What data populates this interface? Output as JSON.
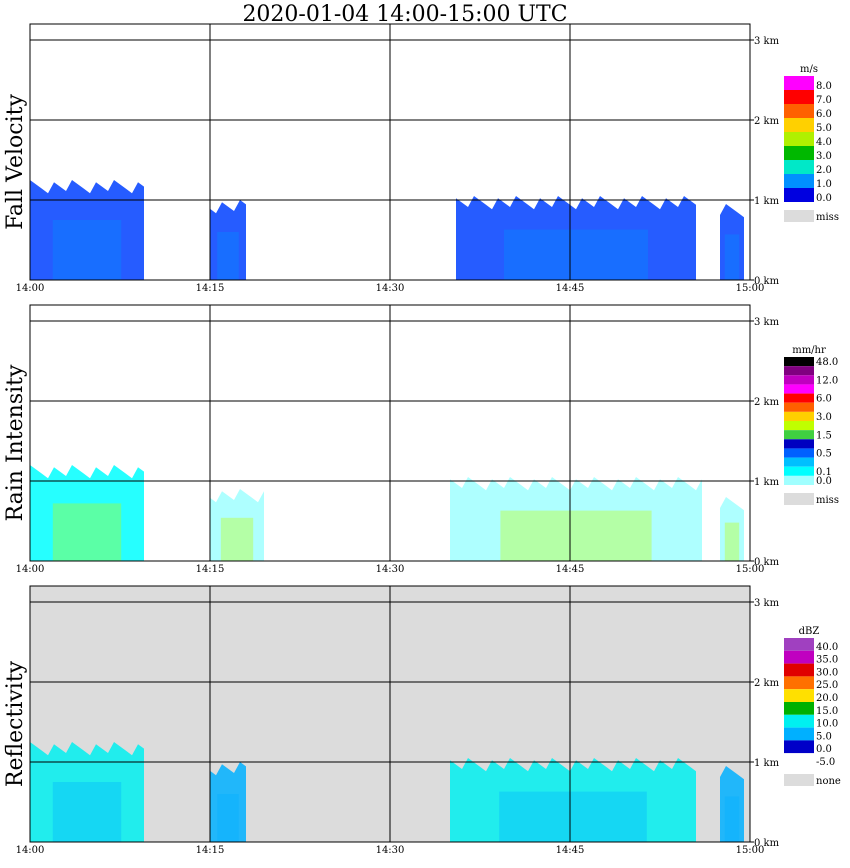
{
  "title": "2020-01-04   14:00-15:00 UTC",
  "chart_data": [
    {
      "type": "heatmap",
      "title": "Fall Velocity",
      "ylabel": "Fall Velocity",
      "x_ticks": [
        "14:00",
        "14:15",
        "14:30",
        "14:45",
        "15:00"
      ],
      "y_ticks": [
        "0 km",
        "1 km",
        "2 km",
        "3 km"
      ],
      "xlim": [
        "14:00",
        "15:00"
      ],
      "ylim_km": [
        0,
        3.0
      ],
      "grid": true,
      "background": "#ffffff",
      "legend": {
        "unit": "m/s",
        "placement": "right",
        "levels": [
          {
            "label": "8.0",
            "color": "#ff00ff"
          },
          {
            "label": "7.0",
            "color": "#ff0000"
          },
          {
            "label": "6.0",
            "color": "#ff6000"
          },
          {
            "label": "5.0",
            "color": "#ffd000"
          },
          {
            "label": "4.0",
            "color": "#b0f000"
          },
          {
            "label": "3.0",
            "color": "#00b800"
          },
          {
            "label": "2.0",
            "color": "#00e8c8"
          },
          {
            "label": "1.0",
            "color": "#0090ff"
          },
          {
            "label": "0.0",
            "color": "#0000e0"
          },
          {
            "label": "miss",
            "color": "#dcdcdc"
          }
        ]
      },
      "echoes": [
        {
          "t_start": 0.0,
          "t_end": 9.5,
          "top_km": 1.25,
          "color": "#0040ff"
        },
        {
          "t_start": 15.0,
          "t_end": 18.0,
          "top_km": 1.0,
          "color": "#0040ff"
        },
        {
          "t_start": 35.5,
          "t_end": 55.5,
          "top_km": 1.05,
          "color": "#0040ff"
        },
        {
          "t_start": 57.5,
          "t_end": 59.5,
          "top_km": 0.95,
          "color": "#0040ff"
        }
      ]
    },
    {
      "type": "heatmap",
      "title": "Rain Intensity",
      "ylabel": "Rain Intensity",
      "x_ticks": [
        "14:00",
        "14:15",
        "14:30",
        "14:45",
        "15:00"
      ],
      "y_ticks": [
        "0 km",
        "1 km",
        "2 km",
        "3 km"
      ],
      "xlim": [
        "14:00",
        "15:00"
      ],
      "ylim_km": [
        0,
        3.0
      ],
      "grid": true,
      "background": "#ffffff",
      "legend": {
        "unit": "mm/hr",
        "placement": "right",
        "levels": [
          {
            "label": "48.0",
            "color": "#000000"
          },
          {
            "label": "",
            "color": "#800080"
          },
          {
            "label": "12.0",
            "color": "#c000c0"
          },
          {
            "label": "",
            "color": "#ff00ff"
          },
          {
            "label": "6.0",
            "color": "#ff0000"
          },
          {
            "label": "",
            "color": "#ff6000"
          },
          {
            "label": "3.0",
            "color": "#ffd000"
          },
          {
            "label": "",
            "color": "#c0ff00"
          },
          {
            "label": "1.5",
            "color": "#40d040"
          },
          {
            "label": "",
            "color": "#0000c0"
          },
          {
            "label": "0.5",
            "color": "#0060ff"
          },
          {
            "label": "",
            "color": "#00c0ff"
          },
          {
            "label": "0.1",
            "color": "#00ffff"
          },
          {
            "label": "0.0",
            "color": "#a0ffff"
          },
          {
            "label": "miss",
            "color": "#dcdcdc"
          }
        ]
      },
      "echoes": [
        {
          "t_start": 0.0,
          "t_end": 9.5,
          "top_km": 1.2,
          "color": "#00ffff"
        },
        {
          "t_start": 15.0,
          "t_end": 19.5,
          "top_km": 0.9,
          "color": "#a0ffff"
        },
        {
          "t_start": 35.0,
          "t_end": 56.0,
          "top_km": 1.05,
          "color": "#a0ffff"
        },
        {
          "t_start": 57.5,
          "t_end": 59.5,
          "top_km": 0.8,
          "color": "#a0ffff"
        }
      ]
    },
    {
      "type": "heatmap",
      "title": "Reflectivity",
      "ylabel": "Reflectivity",
      "x_ticks": [
        "14:00",
        "14:15",
        "14:30",
        "14:45",
        "15:00"
      ],
      "y_ticks": [
        "0 km",
        "1 km",
        "2 km",
        "3 km"
      ],
      "xlim": [
        "14:00",
        "15:00"
      ],
      "ylim_km": [
        0,
        3.0
      ],
      "grid": true,
      "background": "#dcdcdc",
      "legend": {
        "unit": "dBZ",
        "placement": "right",
        "levels": [
          {
            "label": "40.0",
            "color": "#a040c0"
          },
          {
            "label": "35.0",
            "color": "#c000c0"
          },
          {
            "label": "30.0",
            "color": "#e00000"
          },
          {
            "label": "25.0",
            "color": "#ff7000"
          },
          {
            "label": "20.0",
            "color": "#ffe000"
          },
          {
            "label": "15.0",
            "color": "#00b000"
          },
          {
            "label": "10.0",
            "color": "#00f0f0"
          },
          {
            "label": "5.0",
            "color": "#00b0ff"
          },
          {
            "label": "0.0",
            "color": "#0000c8"
          },
          {
            "label": "-5.0",
            "color": "#ffffff"
          },
          {
            "label": "none",
            "color": "#dcdcdc"
          }
        ]
      },
      "echoes": [
        {
          "t_start": 0.0,
          "t_end": 9.5,
          "top_km": 1.25,
          "color": "#00f0f0"
        },
        {
          "t_start": 15.0,
          "t_end": 18.0,
          "top_km": 1.0,
          "color": "#00b0ff"
        },
        {
          "t_start": 35.0,
          "t_end": 55.5,
          "top_km": 1.05,
          "color": "#00f0f0"
        },
        {
          "t_start": 57.5,
          "t_end": 59.5,
          "top_km": 0.95,
          "color": "#00b0ff"
        }
      ]
    }
  ]
}
